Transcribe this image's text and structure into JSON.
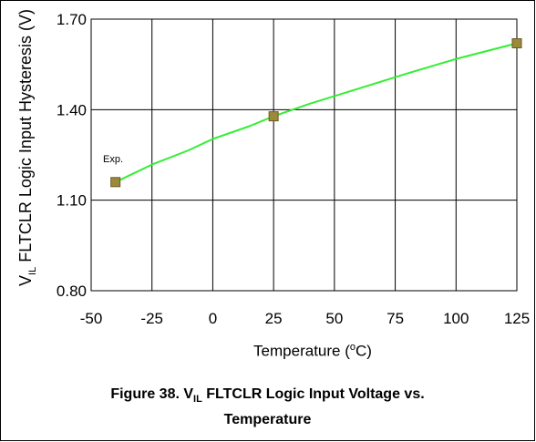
{
  "chart_data": {
    "type": "line",
    "ylabel_prefix": "V",
    "ylabel_sub": "IL",
    "ylabel_rest": " FLTCLR Logic Input Hysteresis (V)",
    "xlabel_pre": "Temperature (",
    "xlabel_sup": "o",
    "xlabel_post": "C)",
    "x_ticks": [
      "-50",
      "-25",
      "0",
      "25",
      "50",
      "75",
      "100",
      "125"
    ],
    "y_ticks": [
      "0.80",
      "1.10",
      "1.40",
      "1.70"
    ],
    "xlim": [
      -50,
      125
    ],
    "ylim": [
      0.8,
      1.7
    ],
    "grid": true,
    "series": [
      {
        "x": [
          -40,
          -25,
          -10,
          0,
          15,
          25,
          40,
          60,
          80,
          100,
          125
        ],
        "y": [
          1.16,
          1.218,
          1.265,
          1.303,
          1.345,
          1.378,
          1.42,
          1.47,
          1.52,
          1.568,
          1.62
        ],
        "color": "#33ee33"
      }
    ],
    "measured_points": {
      "x": [
        -40,
        25,
        125
      ],
      "y": [
        1.16,
        1.378,
        1.62
      ],
      "color": "#9c8a3a"
    },
    "annotation": "Exp."
  },
  "caption": {
    "line1_pre": "Figure 38.  V",
    "line1_sub": "IL",
    "line1_post": " FLTCLR Logic Input Voltage vs.",
    "line2": "Temperature"
  }
}
